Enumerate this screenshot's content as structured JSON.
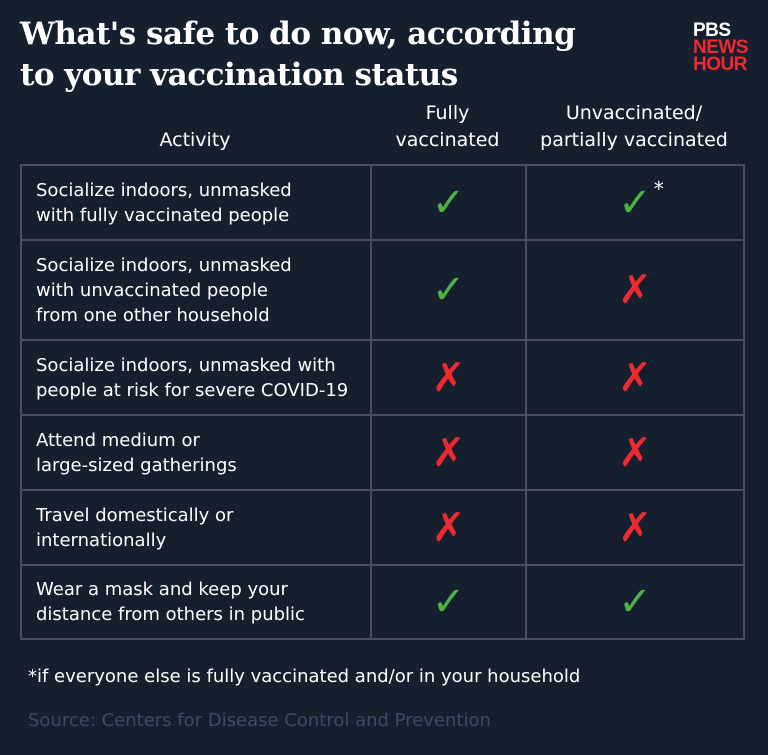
{
  "title_line1": "What's safe to do now, according",
  "title_line2": "to your vaccination status",
  "logo": {
    "line1": "PBS",
    "line2": "NEWS",
    "line3": "HOUR"
  },
  "colors": {
    "background": "#161f2e",
    "check": "#4db347",
    "cross": "#ee2a31",
    "grid": "#474e5d"
  },
  "chart_data": {
    "type": "table",
    "columns": [
      "Activity",
      "Fully vaccinated",
      "Unvaccinated/ partially vaccinated"
    ],
    "header": {
      "activity": "Activity",
      "col1_line1": "Fully",
      "col1_line2": "vaccinated",
      "col2_line1": "Unvaccinated/",
      "col2_line2": "partially vaccinated"
    },
    "rows": [
      {
        "lines": [
          "Socialize indoors, unmasked",
          "with fully vaccinated people"
        ],
        "fully": "yes",
        "unvax": "yes",
        "unvax_note": "*"
      },
      {
        "lines": [
          "Socialize indoors, unmasked",
          "with unvaccinated people",
          "from one other household"
        ],
        "fully": "yes",
        "unvax": "no"
      },
      {
        "lines": [
          "Socialize indoors, unmasked with",
          "people at risk for severe COVID-19"
        ],
        "fully": "no",
        "unvax": "no"
      },
      {
        "lines": [
          "Attend medium or",
          "large-sized gatherings"
        ],
        "fully": "no",
        "unvax": "no"
      },
      {
        "lines": [
          "Travel domestically or",
          "internationally"
        ],
        "fully": "no",
        "unvax": "no"
      },
      {
        "lines": [
          "Wear a mask and keep your",
          "distance from others in public"
        ],
        "fully": "yes",
        "unvax": "yes"
      }
    ]
  },
  "symbols": {
    "yes": "✓",
    "no": "✗"
  },
  "footnote": "*if everyone else is fully vaccinated and/or in your household",
  "source": "Source: Centers for Disease Control and Prevention"
}
